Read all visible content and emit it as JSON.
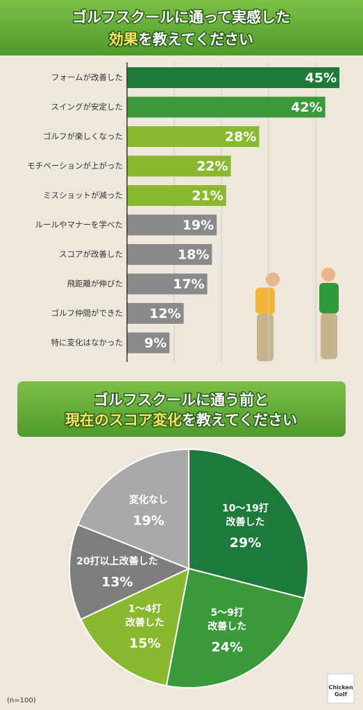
{
  "chart_data": [
    {
      "type": "hbar",
      "title": [
        [
          {
            "text": "ゴルフスクールに通って実感した"
          }
        ],
        [
          {
            "text": "効果",
            "highlight": true
          },
          {
            "text": "を教えてください"
          }
        ]
      ],
      "title_highlight": "#f7e65a",
      "categories": [
        "フォームが改善した",
        "スイングが安定した",
        "ゴルフが楽しくなった",
        "モチベーションが上がった",
        "ミスショットが減った",
        "ルールやマナーを学べた",
        "スコアが改善した",
        "飛距離が伸びた",
        "ゴルフ仲間ができた",
        "特に変化はなかった"
      ],
      "values": [
        45,
        42,
        28,
        22,
        21,
        19,
        18,
        17,
        12,
        9
      ],
      "value_labels": [
        "45%",
        "42%",
        "28%",
        "22%",
        "21%",
        "19%",
        "18%",
        "17%",
        "12%",
        "9%"
      ],
      "colors": [
        "#1e7a3a",
        "#3a9a3a",
        "#8ab82e",
        "#8ab82e",
        "#8ab82e",
        "#8a8a8a",
        "#8a8a8a",
        "#8a8a8a",
        "#8a8a8a",
        "#8a8a8a"
      ],
      "xlim": [
        0,
        50
      ],
      "xticks": [
        10,
        20,
        30,
        40
      ],
      "grid": true
    },
    {
      "type": "pie",
      "title": [
        [
          {
            "text": "ゴルフスクールに通う前と"
          }
        ],
        [
          {
            "text": "現在のスコア変化",
            "highlight": true
          },
          {
            "text": "を教えてください"
          }
        ]
      ],
      "title_highlight": "#f7e65a",
      "categories": [
        [
          "10〜19打",
          "改善した"
        ],
        [
          "5〜9打",
          "改善した"
        ],
        [
          "1〜4打",
          "改善した"
        ],
        [
          "20打以上改善した"
        ],
        [
          "変化なし"
        ]
      ],
      "values": [
        29,
        24,
        15,
        13,
        19
      ],
      "value_labels": [
        "29%",
        "24%",
        "15%",
        "13%",
        "19%"
      ],
      "colors": [
        "#1e7a3a",
        "#3a9a3a",
        "#8ab82e",
        "#7d7d7d",
        "#a9a9a9"
      ]
    }
  ],
  "footer": {
    "note": "(n=100)",
    "logo": [
      "Chicken",
      "Golf"
    ]
  }
}
